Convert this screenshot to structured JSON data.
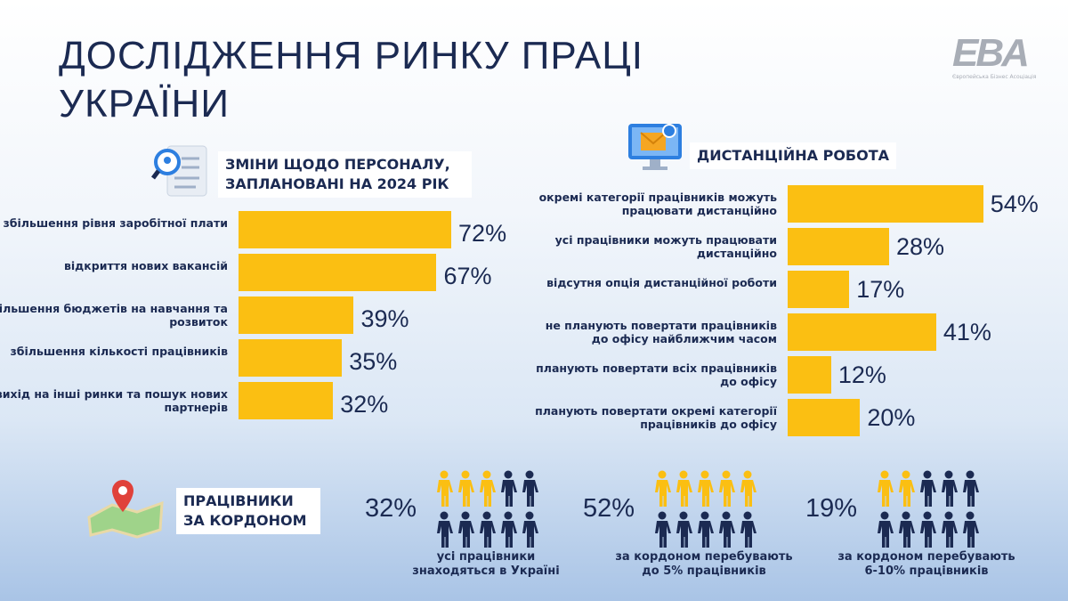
{
  "title": [
    "ДОСЛІДЖЕННЯ РИНКУ ПРАЦІ",
    "УКРАЇНИ"
  ],
  "logo": {
    "mark": "EBA",
    "subtitle": "Європейська Бізнес Асоціація"
  },
  "colors": {
    "bar": "#fbbf12",
    "navy": "#1b2a52",
    "yellow_person": "#fbbf12"
  },
  "chart_data": [
    {
      "type": "bar",
      "orientation": "horizontal",
      "title": "ЗМІНИ ЩОДО ПЕРСОНАЛУ, ЗАПЛАНОВАНІ НА 2024 РІК",
      "categories": [
        "збільшення рівня заробітної плати",
        "відкриття нових вакансій",
        "збільшення бюджетів на навчання та розвиток",
        "збільшення кількості працівників",
        "вихід на інші ринки та пошук нових партнерів"
      ],
      "values": [
        72,
        67,
        39,
        35,
        32
      ],
      "unit": "%"
    },
    {
      "type": "bar",
      "orientation": "horizontal",
      "title": "ДИСТАНЦІЙНА РОБОТА",
      "categories": [
        "окремі категорії працівників можуть працювати дистанційно",
        "усі працівники можуть працювати дистанційно",
        "відсутня опція дистанційної роботи",
        "не планують повертати працівників до офісу найближчим часом",
        "планують повертати всіх працівників до офісу",
        "планують повертати окремі категорії працівників до офісу"
      ],
      "values": [
        54,
        28,
        17,
        41,
        12,
        20
      ],
      "unit": "%"
    }
  ],
  "abroad": {
    "title": "ПРАЦІВНИКИ ЗА КОРДОНОМ",
    "items": [
      {
        "pct": "32%",
        "value": 32,
        "yellow": 3,
        "caption": "усі працівники знаходяться в Україні"
      },
      {
        "pct": "52%",
        "value": 52,
        "yellow": 5,
        "caption": "за кордоном перебувають до 5% працівників"
      },
      {
        "pct": "19%",
        "value": 19,
        "yellow": 2,
        "caption": "за кордоном перебувають 6-10% працівників"
      }
    ]
  }
}
